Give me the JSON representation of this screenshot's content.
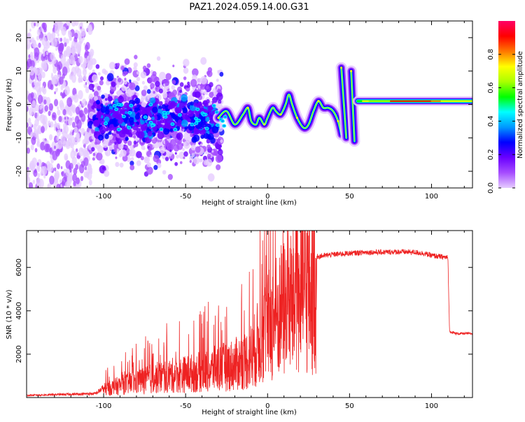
{
  "figure": {
    "title": "PAZ1.2024.059.14.00.G31"
  },
  "colors": {
    "spectrogram_scale": [
      "#ffffff",
      "#e6ccff",
      "#a64dff",
      "#6a00ff",
      "#0000ff",
      "#0099ff",
      "#00ffff",
      "#00ff00",
      "#aaff00",
      "#ffff00",
      "#ff7700",
      "#ff0000",
      "#ff0066"
    ],
    "snr_line": "#ee2222"
  },
  "chart_data": [
    {
      "type": "heatmap",
      "xlabel": "Height of straight line (km)",
      "ylabel": "Frequency (Hz)",
      "xlim": [
        -147,
        125
      ],
      "ylim": [
        -25,
        25
      ],
      "xticks": [
        -100,
        -50,
        0,
        50,
        100
      ],
      "yticks": [
        -20,
        -10,
        0,
        10,
        20
      ],
      "colorbar": {
        "label": "Normalized spectral amplitude",
        "range": [
          0,
          1
        ],
        "ticks": [
          0.0,
          0.2,
          0.4,
          0.6,
          0.8
        ]
      },
      "traces": [
        {
          "x": [
            -30,
            -25,
            -20,
            -15,
            -12,
            -10,
            -7,
            -5,
            -2,
            0,
            3,
            5,
            8,
            11,
            13,
            15,
            18,
            22,
            25,
            28,
            31,
            34,
            37,
            40,
            43,
            45
          ],
          "y": [
            -4,
            -2,
            -6,
            -3,
            -1,
            -5,
            -6,
            -4,
            -6,
            -4,
            -1,
            -2,
            -3,
            0,
            3,
            0,
            -4,
            -7,
            -6,
            -2,
            1,
            -1,
            -1,
            -2,
            -5,
            -9
          ]
        },
        {
          "x": [
            45,
            48
          ],
          "y": [
            11,
            -10
          ]
        },
        {
          "x": [
            51,
            53
          ],
          "y": [
            10,
            -11
          ]
        },
        {
          "x": [
            55,
            125
          ],
          "y": [
            1,
            1
          ]
        }
      ]
    },
    {
      "type": "line",
      "xlabel": "Height of straight line (km)",
      "ylabel": "SNR (10 * v/v)",
      "xlim": [
        -147,
        125
      ],
      "ylim": [
        0,
        7700
      ],
      "xticks": [
        -100,
        -50,
        0,
        50,
        100
      ],
      "yticks": [
        2000,
        4000,
        6000
      ],
      "envelope": {
        "x": [
          -147,
          -105,
          -100,
          -90,
          -80,
          -70,
          -60,
          -50,
          -40,
          -30,
          -20,
          -12,
          -8,
          -5,
          0,
          5,
          10,
          15,
          20,
          25,
          30,
          40,
          50,
          60,
          70,
          80,
          90,
          95,
          100,
          105,
          110,
          111,
          115,
          120,
          125
        ],
        "y": [
          100,
          180,
          450,
          700,
          900,
          1100,
          1250,
          1350,
          1500,
          1700,
          1900,
          2200,
          2700,
          3300,
          4000,
          4600,
          5100,
          5600,
          5950,
          6250,
          6500,
          6600,
          6650,
          6700,
          6700,
          6720,
          6700,
          6650,
          6550,
          6500,
          6450,
          3050,
          2950,
          2950,
          2950
        ]
      }
    }
  ]
}
